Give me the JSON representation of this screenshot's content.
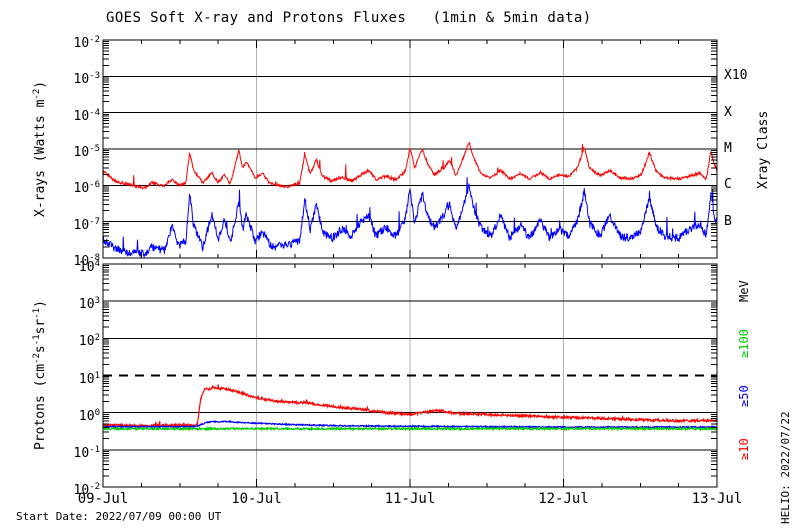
{
  "footer": {
    "start_date": "Start Date: 2022/07/09 00:00 UT",
    "watermark": "HELIO: 2022/07/22"
  },
  "chart_data": {
    "type": "line",
    "title": "GOES Soft X-ray and Protons Fluxes   (1min & 5min data)",
    "colors": {
      "axis": "#000000",
      "day_line": "#b0b0b0",
      "background": "#ffffff"
    },
    "x": {
      "range_days": [
        0,
        4
      ],
      "tick_labels": [
        "09-Jul",
        "10-Jul",
        "11-Jul",
        "12-Jul",
        "13-Jul"
      ],
      "minor_tick_hours": 6,
      "day_gridlines": [
        1,
        2,
        3
      ]
    },
    "panels": [
      {
        "name": "xray",
        "ylabel": "X-rays (Watts m^-2^)",
        "ylim_exp": [
          -8,
          -2
        ],
        "ytick_labels": [
          "10^-2^",
          "10^-3^",
          "10^-4^",
          "10^-5^",
          "10^-6^",
          "10^-7^",
          "10^-8^"
        ],
        "right_axis_title": "Xray Class",
        "right_labels": [
          {
            "text": "X10",
            "exp": -3,
            "color": "#000000"
          },
          {
            "text": "X",
            "exp": -4,
            "color": "#000000"
          },
          {
            "text": "M",
            "exp": -5,
            "color": "#000000"
          },
          {
            "text": "C",
            "exp": -6,
            "color": "#000000"
          },
          {
            "text": "B",
            "exp": -7,
            "color": "#000000"
          }
        ],
        "series": [
          {
            "name": "xray-long",
            "color": "#ff0000",
            "width": 1,
            "noise_log": 0.04,
            "spike_prob": 0.012,
            "spike_mag": 0.4,
            "points": [
              [
                0,
                2.5e-06
              ],
              [
                0.08,
                1.3e-06
              ],
              [
                0.18,
                1e-06
              ],
              [
                0.27,
                8.5e-07
              ],
              [
                0.32,
                1.2e-06
              ],
              [
                0.4,
                9.5e-07
              ],
              [
                0.45,
                1.5e-06
              ],
              [
                0.49,
                1e-06
              ],
              [
                0.54,
                1.2e-06
              ],
              [
                0.565,
                8e-06
              ],
              [
                0.59,
                2.5e-06
              ],
              [
                0.65,
                1.2e-06
              ],
              [
                0.71,
                2.2e-06
              ],
              [
                0.75,
                1.2e-06
              ],
              [
                0.79,
                1.9e-06
              ],
              [
                0.83,
                1.1e-06
              ],
              [
                0.885,
                9e-06
              ],
              [
                0.91,
                3e-06
              ],
              [
                0.935,
                4.5e-06
              ],
              [
                0.99,
                1.6e-06
              ],
              [
                1.04,
                2.1e-06
              ],
              [
                1.09,
                1.1e-06
              ],
              [
                1.19,
                9e-07
              ],
              [
                1.28,
                1.1e-06
              ],
              [
                1.315,
                7e-06
              ],
              [
                1.35,
                2e-06
              ],
              [
                1.39,
                5e-06
              ],
              [
                1.43,
                1.8e-06
              ],
              [
                1.49,
                1.3e-06
              ],
              [
                1.56,
                1.7e-06
              ],
              [
                1.62,
                1.3e-06
              ],
              [
                1.67,
                1.8e-06
              ],
              [
                1.73,
                2.6e-06
              ],
              [
                1.78,
                1.4e-06
              ],
              [
                1.84,
                1.8e-06
              ],
              [
                1.91,
                1.4e-06
              ],
              [
                1.97,
                2.5e-06
              ],
              [
                2.0,
                1.1e-05
              ],
              [
                2.03,
                3e-06
              ],
              [
                2.08,
                1e-05
              ],
              [
                2.12,
                3.5e-06
              ],
              [
                2.16,
                2e-06
              ],
              [
                2.22,
                3e-06
              ],
              [
                2.26,
                5e-06
              ],
              [
                2.3,
                1.8e-06
              ],
              [
                2.385,
                1.5e-05
              ],
              [
                2.42,
                5e-06
              ],
              [
                2.46,
                2.2e-06
              ],
              [
                2.53,
                1.6e-06
              ],
              [
                2.59,
                2.6e-06
              ],
              [
                2.65,
                1.5e-06
              ],
              [
                2.72,
                2.2e-06
              ],
              [
                2.78,
                1.5e-06
              ],
              [
                2.85,
                2.3e-06
              ],
              [
                2.91,
                1.5e-06
              ],
              [
                2.98,
                2e-06
              ],
              [
                3.03,
                1.7e-06
              ],
              [
                3.09,
                3e-06
              ],
              [
                3.135,
                1.1e-05
              ],
              [
                3.17,
                3e-06
              ],
              [
                3.24,
                1.8e-06
              ],
              [
                3.3,
                2.6e-06
              ],
              [
                3.37,
                1.6e-06
              ],
              [
                3.45,
                1.5e-06
              ],
              [
                3.51,
                2.1e-06
              ],
              [
                3.56,
                8e-06
              ],
              [
                3.6,
                2.6e-06
              ],
              [
                3.66,
                1.6e-06
              ],
              [
                3.75,
                1.5e-06
              ],
              [
                3.82,
                1.8e-06
              ],
              [
                3.89,
                2.2e-06
              ],
              [
                3.93,
                1.4e-06
              ],
              [
                3.96,
                9e-06
              ],
              [
                3.98,
                4e-06
              ],
              [
                4.0,
                2.5e-06
              ]
            ]
          },
          {
            "name": "xray-short",
            "color": "#0000ff",
            "width": 1,
            "noise_log": 0.11,
            "spike_prob": 0.02,
            "spike_mag": 0.5,
            "points": [
              [
                0,
                3e-08
              ],
              [
                0.08,
                1.8e-08
              ],
              [
                0.18,
                1.4e-08
              ],
              [
                0.27,
                1.3e-08
              ],
              [
                0.32,
                2e-08
              ],
              [
                0.4,
                1.6e-08
              ],
              [
                0.45,
                8e-08
              ],
              [
                0.49,
                2e-08
              ],
              [
                0.54,
                3e-08
              ],
              [
                0.565,
                7e-07
              ],
              [
                0.59,
                8e-08
              ],
              [
                0.65,
                2e-08
              ],
              [
                0.71,
                1.6e-07
              ],
              [
                0.75,
                3e-08
              ],
              [
                0.79,
                1.1e-07
              ],
              [
                0.83,
                2.5e-08
              ],
              [
                0.885,
                3.5e-07
              ],
              [
                0.91,
                6e-08
              ],
              [
                0.935,
                1.6e-07
              ],
              [
                0.99,
                3e-08
              ],
              [
                1.04,
                5e-08
              ],
              [
                1.1,
                2e-08
              ],
              [
                1.19,
                2.2e-08
              ],
              [
                1.28,
                3e-08
              ],
              [
                1.315,
                4e-07
              ],
              [
                1.35,
                6e-08
              ],
              [
                1.39,
                3e-07
              ],
              [
                1.43,
                5e-08
              ],
              [
                1.49,
                3.5e-08
              ],
              [
                1.56,
                6e-08
              ],
              [
                1.62,
                4e-08
              ],
              [
                1.67,
                9e-08
              ],
              [
                1.73,
                1.4e-07
              ],
              [
                1.78,
                4e-08
              ],
              [
                1.84,
                7e-08
              ],
              [
                1.91,
                4e-08
              ],
              [
                1.97,
                1.2e-07
              ],
              [
                2.0,
                8e-07
              ],
              [
                2.03,
                9e-08
              ],
              [
                2.08,
                6e-07
              ],
              [
                2.12,
                1.2e-07
              ],
              [
                2.16,
                7e-08
              ],
              [
                2.22,
                1.5e-07
              ],
              [
                2.26,
                3e-07
              ],
              [
                2.3,
                6e-08
              ],
              [
                2.385,
                9e-07
              ],
              [
                2.42,
                2e-07
              ],
              [
                2.46,
                7e-08
              ],
              [
                2.53,
                4e-08
              ],
              [
                2.59,
                1.5e-07
              ],
              [
                2.65,
                3.5e-08
              ],
              [
                2.72,
                8e-08
              ],
              [
                2.78,
                3.5e-08
              ],
              [
                2.85,
                1.1e-07
              ],
              [
                2.91,
                3.5e-08
              ],
              [
                2.98,
                6e-08
              ],
              [
                3.03,
                4e-08
              ],
              [
                3.09,
                1e-07
              ],
              [
                3.135,
                7e-07
              ],
              [
                3.17,
                9e-08
              ],
              [
                3.24,
                4e-08
              ],
              [
                3.3,
                1.5e-07
              ],
              [
                3.37,
                4e-08
              ],
              [
                3.45,
                3.5e-08
              ],
              [
                3.51,
                6e-08
              ],
              [
                3.56,
                5e-07
              ],
              [
                3.6,
                8e-08
              ],
              [
                3.66,
                4e-08
              ],
              [
                3.75,
                3.5e-08
              ],
              [
                3.82,
                6e-08
              ],
              [
                3.89,
                9e-08
              ],
              [
                3.93,
                4e-08
              ],
              [
                3.96,
                6e-07
              ],
              [
                3.98,
                1.5e-07
              ],
              [
                4.0,
                1e-07
              ]
            ]
          }
        ]
      },
      {
        "name": "protons",
        "ylabel": "Protons (cm^-2^s^-1^sr^-1^)",
        "ylim_exp": [
          -2,
          4
        ],
        "ytick_labels": [
          "10^4^",
          "10^3^",
          "10^2^",
          "10^1^",
          "10^0^",
          "10^-1^",
          "10^-2^"
        ],
        "right_axis_title": "MeV",
        "threshold_line_exp": 1,
        "right_labels": [
          {
            "text": "≥100",
            "color": "#00cc00"
          },
          {
            "text": "≥50",
            "color": "#0000ff"
          },
          {
            "text": "≥10",
            "color": "#ff0000"
          }
        ],
        "series": [
          {
            "name": "protons-ge10",
            "color": "#ff0000",
            "width": 1.2,
            "noise_log": 0.032,
            "spike_prob": 0.008,
            "spike_mag": 0.12,
            "points": [
              [
                0,
                0.46
              ],
              [
                0.3,
                0.44
              ],
              [
                0.5,
                0.46
              ],
              [
                0.6,
                0.45
              ],
              [
                0.615,
                0.5
              ],
              [
                0.635,
                2.2
              ],
              [
                0.66,
                4.2
              ],
              [
                0.72,
                4.6
              ],
              [
                0.8,
                4.4
              ],
              [
                0.88,
                3.6
              ],
              [
                1.0,
                2.5
              ],
              [
                1.15,
                2.0
              ],
              [
                1.35,
                1.8
              ],
              [
                1.5,
                1.45
              ],
              [
                1.7,
                1.2
              ],
              [
                1.85,
                1.0
              ],
              [
                2.0,
                0.9
              ],
              [
                2.08,
                1.0
              ],
              [
                2.18,
                1.15
              ],
              [
                2.3,
                0.95
              ],
              [
                2.5,
                0.9
              ],
              [
                2.75,
                0.82
              ],
              [
                3.0,
                0.75
              ],
              [
                3.25,
                0.7
              ],
              [
                3.5,
                0.65
              ],
              [
                3.75,
                0.6
              ],
              [
                4.0,
                0.62
              ]
            ]
          },
          {
            "name": "protons-ge50",
            "color": "#0000ff",
            "width": 1.2,
            "noise_log": 0.016,
            "points": [
              [
                0,
                0.42
              ],
              [
                0.6,
                0.42
              ],
              [
                0.63,
                0.46
              ],
              [
                0.68,
                0.56
              ],
              [
                0.8,
                0.58
              ],
              [
                0.95,
                0.53
              ],
              [
                1.1,
                0.5
              ],
              [
                1.3,
                0.47
              ],
              [
                1.6,
                0.44
              ],
              [
                2.0,
                0.43
              ],
              [
                2.5,
                0.42
              ],
              [
                3.0,
                0.41
              ],
              [
                3.5,
                0.41
              ],
              [
                4.0,
                0.41
              ]
            ]
          },
          {
            "name": "protons-ge100",
            "color": "#00cc00",
            "width": 1.2,
            "noise_log": 0.026,
            "points": [
              [
                0,
                0.37
              ],
              [
                4.0,
                0.37
              ]
            ]
          }
        ]
      }
    ]
  }
}
